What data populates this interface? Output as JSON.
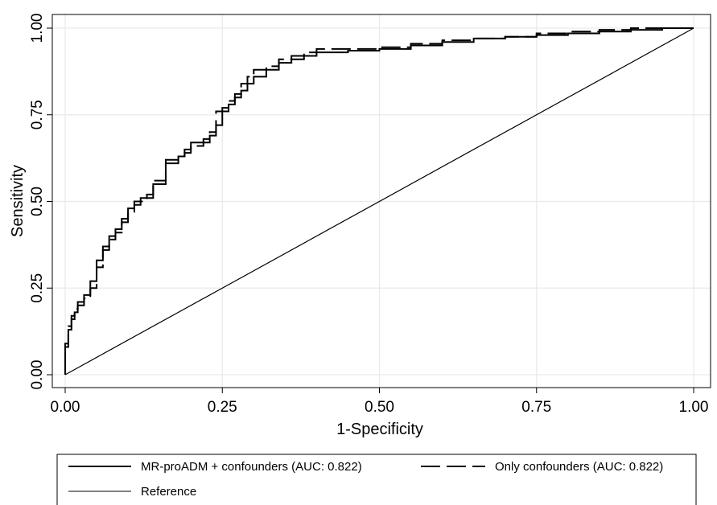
{
  "chart_data": {
    "type": "line",
    "xlabel": "1-Specificity",
    "ylabel": "Sensitivity",
    "xlim": [
      0,
      1
    ],
    "ylim": [
      0,
      1
    ],
    "x_ticks": [
      "0.00",
      "0.25",
      "0.50",
      "0.75",
      "1.00"
    ],
    "y_ticks": [
      "0.00",
      "0.25",
      "0.50",
      "0.75",
      "1.00"
    ],
    "grid": true,
    "legend_position": "bottom",
    "series": [
      {
        "name": "MR-proADM + confounders (AUC: 0.822)",
        "style": "solid",
        "x": [
          0.0,
          0.005,
          0.01,
          0.015,
          0.02,
          0.03,
          0.04,
          0.05,
          0.06,
          0.07,
          0.08,
          0.09,
          0.1,
          0.11,
          0.12,
          0.13,
          0.14,
          0.16,
          0.18,
          0.19,
          0.2,
          0.22,
          0.23,
          0.24,
          0.25,
          0.26,
          0.27,
          0.28,
          0.29,
          0.3,
          0.32,
          0.34,
          0.36,
          0.38,
          0.4,
          0.45,
          0.5,
          0.55,
          0.6,
          0.65,
          0.7,
          0.75,
          0.8,
          0.85,
          0.9,
          0.95,
          0.97,
          1.0
        ],
        "y": [
          0.0,
          0.08,
          0.13,
          0.16,
          0.18,
          0.2,
          0.23,
          0.27,
          0.33,
          0.37,
          0.4,
          0.42,
          0.45,
          0.48,
          0.5,
          0.51,
          0.52,
          0.55,
          0.61,
          0.63,
          0.65,
          0.67,
          0.68,
          0.69,
          0.72,
          0.77,
          0.78,
          0.8,
          0.82,
          0.84,
          0.86,
          0.88,
          0.9,
          0.91,
          0.92,
          0.93,
          0.935,
          0.94,
          0.95,
          0.96,
          0.97,
          0.975,
          0.98,
          0.985,
          0.99,
          0.995,
          1.0,
          1.0
        ]
      },
      {
        "name": "Only confounders (AUC: 0.822)",
        "style": "dashed",
        "x": [
          0.0,
          0.005,
          0.01,
          0.015,
          0.02,
          0.03,
          0.04,
          0.05,
          0.06,
          0.07,
          0.08,
          0.09,
          0.1,
          0.11,
          0.12,
          0.13,
          0.14,
          0.16,
          0.18,
          0.19,
          0.2,
          0.22,
          0.23,
          0.24,
          0.25,
          0.26,
          0.27,
          0.28,
          0.29,
          0.3,
          0.32,
          0.34,
          0.36,
          0.38,
          0.4,
          0.45,
          0.5,
          0.55,
          0.6,
          0.65,
          0.7,
          0.75,
          0.8,
          0.85,
          0.9,
          0.95,
          0.97,
          1.0
        ],
        "y": [
          0.0,
          0.09,
          0.14,
          0.17,
          0.19,
          0.21,
          0.22,
          0.25,
          0.31,
          0.36,
          0.39,
          0.41,
          0.44,
          0.47,
          0.49,
          0.5,
          0.51,
          0.56,
          0.62,
          0.63,
          0.64,
          0.66,
          0.67,
          0.7,
          0.76,
          0.76,
          0.79,
          0.81,
          0.84,
          0.86,
          0.88,
          0.89,
          0.91,
          0.92,
          0.93,
          0.94,
          0.94,
          0.945,
          0.955,
          0.965,
          0.97,
          0.975,
          0.985,
          0.99,
          0.995,
          1.0,
          1.0,
          1.0
        ]
      },
      {
        "name": "Reference",
        "style": "solid-thin",
        "x": [
          0,
          1
        ],
        "y": [
          0,
          1
        ]
      }
    ]
  }
}
